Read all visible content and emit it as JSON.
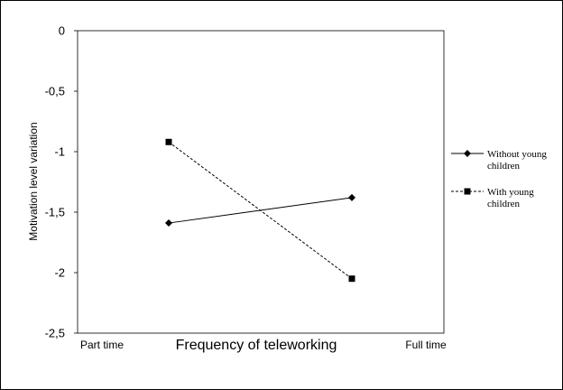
{
  "chart_data": {
    "type": "line",
    "title": "",
    "xlabel": "Frequency of teleworking",
    "ylabel": "Motivation level variation",
    "categories": [
      "Part time",
      "Full time"
    ],
    "ylim": [
      -2.5,
      0
    ],
    "yticks": [
      0,
      -0.5,
      -1,
      -1.5,
      -2,
      -2.5
    ],
    "ytick_labels": [
      "0",
      "-0,5",
      "-1",
      "-1,5",
      "-2",
      "-2,5"
    ],
    "legend_position": "right",
    "grid": false,
    "series": [
      {
        "name": "Without young children",
        "values": [
          -1.59,
          -1.38
        ],
        "marker": "diamond",
        "line": "solid",
        "color": "#000000"
      },
      {
        "name": "With young children",
        "values": [
          -0.92,
          -2.05
        ],
        "marker": "square",
        "line": "dashed",
        "color": "#000000"
      }
    ],
    "legend": [
      {
        "lines": [
          "Without young",
          "children"
        ]
      },
      {
        "lines": [
          "With young",
          "children"
        ]
      }
    ]
  }
}
